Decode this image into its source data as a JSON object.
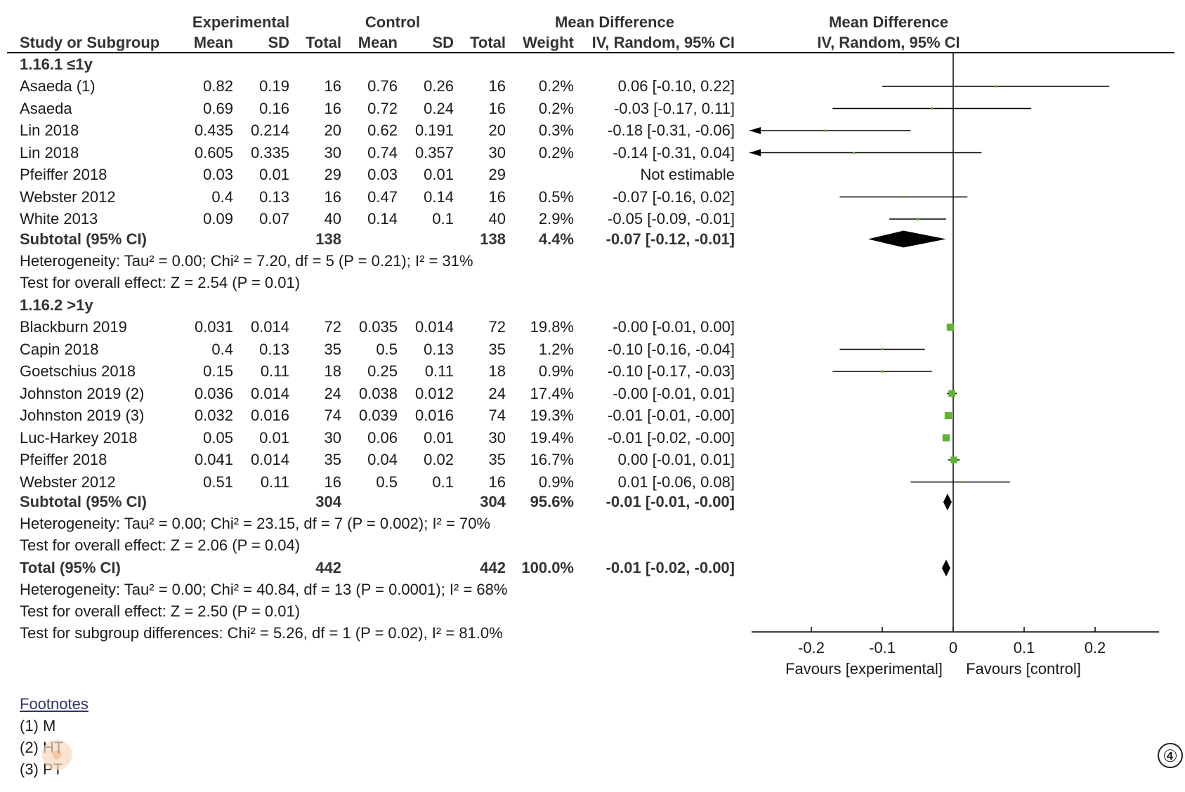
{
  "header": {
    "group1": "Experimental",
    "group2": "Control",
    "md_title": "Mean Difference",
    "plot_title": "Mean Difference",
    "study_col": "Study or Subgroup",
    "mean1": "Mean",
    "sd1": "SD",
    "total1": "Total",
    "mean2": "Mean",
    "sd2": "SD",
    "total2": "Total",
    "weight": "Weight",
    "md_method": "IV, Random, 95% CI",
    "plot_method": "IV, Random, 95% CI"
  },
  "subgroups": [
    {
      "label": "1.16.1 ≤1y",
      "studies": [
        {
          "name": "Asaeda (1)",
          "m1": "0.82",
          "sd1": "0.19",
          "n1": "16",
          "m2": "0.76",
          "sd2": "0.26",
          "n2": "16",
          "w": "0.2%",
          "ci": "0.06 [-0.10, 0.22]",
          "md": 0.06,
          "lo": -0.1,
          "hi": 0.22,
          "weight": 0.2
        },
        {
          "name": "Asaeda",
          "m1": "0.69",
          "sd1": "0.16",
          "n1": "16",
          "m2": "0.72",
          "sd2": "0.24",
          "n2": "16",
          "w": "0.2%",
          "ci": "-0.03 [-0.17, 0.11]",
          "md": -0.03,
          "lo": -0.17,
          "hi": 0.11,
          "weight": 0.2
        },
        {
          "name": "Lin 2018",
          "m1": "0.435",
          "sd1": "0.214",
          "n1": "20",
          "m2": "0.62",
          "sd2": "0.191",
          "n2": "20",
          "w": "0.3%",
          "ci": "-0.18 [-0.31, -0.06]",
          "md": -0.18,
          "lo": -0.31,
          "hi": -0.06,
          "weight": 0.3
        },
        {
          "name": "Lin 2018",
          "m1": "0.605",
          "sd1": "0.335",
          "n1": "30",
          "m2": "0.74",
          "sd2": "0.357",
          "n2": "30",
          "w": "0.2%",
          "ci": "-0.14 [-0.31, 0.04]",
          "md": -0.14,
          "lo": -0.31,
          "hi": 0.04,
          "weight": 0.2
        },
        {
          "name": "Pfeiffer 2018",
          "m1": "0.03",
          "sd1": "0.01",
          "n1": "29",
          "m2": "0.03",
          "sd2": "0.01",
          "n2": "29",
          "w": "",
          "ci": "Not estimable",
          "md": null,
          "lo": null,
          "hi": null,
          "weight": 0
        },
        {
          "name": "Webster 2012",
          "m1": "0.4",
          "sd1": "0.13",
          "n1": "16",
          "m2": "0.47",
          "sd2": "0.14",
          "n2": "16",
          "w": "0.5%",
          "ci": "-0.07 [-0.16, 0.02]",
          "md": -0.07,
          "lo": -0.16,
          "hi": 0.02,
          "weight": 0.5
        },
        {
          "name": "White 2013",
          "m1": "0.09",
          "sd1": "0.07",
          "n1": "40",
          "m2": "0.14",
          "sd2": "0.1",
          "n2": "40",
          "w": "2.9%",
          "ci": "-0.05 [-0.09, -0.01]",
          "md": -0.05,
          "lo": -0.09,
          "hi": -0.01,
          "weight": 2.9
        }
      ],
      "subtotal": {
        "label": "Subtotal (95% CI)",
        "n1": "138",
        "n2": "138",
        "w": "4.4%",
        "ci": "-0.07 [-0.12, -0.01]",
        "md": -0.07,
        "lo": -0.12,
        "hi": -0.01
      },
      "heterogeneity": "Heterogeneity: Tau² = 0.00; Chi² = 7.20, df = 5 (P = 0.21); I² = 31%",
      "overall": "Test for overall effect: Z = 2.54 (P = 0.01)"
    },
    {
      "label": "1.16.2 >1y",
      "studies": [
        {
          "name": "Blackburn 2019",
          "m1": "0.031",
          "sd1": "0.014",
          "n1": "72",
          "m2": "0.035",
          "sd2": "0.014",
          "n2": "72",
          "w": "19.8%",
          "ci": "-0.00 [-0.01, 0.00]",
          "md": -0.004,
          "lo": -0.009,
          "hi": 0.001,
          "weight": 19.8
        },
        {
          "name": "Capin 2018",
          "m1": "0.4",
          "sd1": "0.13",
          "n1": "35",
          "m2": "0.5",
          "sd2": "0.13",
          "n2": "35",
          "w": "1.2%",
          "ci": "-0.10 [-0.16, -0.04]",
          "md": -0.1,
          "lo": -0.16,
          "hi": -0.04,
          "weight": 1.2
        },
        {
          "name": "Goetschius 2018",
          "m1": "0.15",
          "sd1": "0.11",
          "n1": "18",
          "m2": "0.25",
          "sd2": "0.11",
          "n2": "18",
          "w": "0.9%",
          "ci": "-0.10 [-0.17, -0.03]",
          "md": -0.1,
          "lo": -0.17,
          "hi": -0.03,
          "weight": 0.9
        },
        {
          "name": "Johnston 2019 (2)",
          "m1": "0.036",
          "sd1": "0.014",
          "n1": "24",
          "m2": "0.038",
          "sd2": "0.012",
          "n2": "24",
          "w": "17.4%",
          "ci": "-0.00 [-0.01, 0.01]",
          "md": -0.002,
          "lo": -0.009,
          "hi": 0.005,
          "weight": 17.4
        },
        {
          "name": "Johnston 2019 (3)",
          "m1": "0.032",
          "sd1": "0.016",
          "n1": "74",
          "m2": "0.039",
          "sd2": "0.016",
          "n2": "74",
          "w": "19.3%",
          "ci": "-0.01 [-0.01, -0.00]",
          "md": -0.007,
          "lo": -0.012,
          "hi": -0.002,
          "weight": 19.3
        },
        {
          "name": "Luc-Harkey 2018",
          "m1": "0.05",
          "sd1": "0.01",
          "n1": "30",
          "m2": "0.06",
          "sd2": "0.01",
          "n2": "30",
          "w": "19.4%",
          "ci": "-0.01 [-0.02, -0.00]",
          "md": -0.01,
          "lo": -0.015,
          "hi": -0.005,
          "weight": 19.4
        },
        {
          "name": "Pfeiffer 2018",
          "m1": "0.041",
          "sd1": "0.014",
          "n1": "35",
          "m2": "0.04",
          "sd2": "0.02",
          "n2": "35",
          "w": "16.7%",
          "ci": "0.00 [-0.01, 0.01]",
          "md": 0.001,
          "lo": -0.007,
          "hi": 0.009,
          "weight": 16.7
        },
        {
          "name": "Webster 2012",
          "m1": "0.51",
          "sd1": "0.11",
          "n1": "16",
          "m2": "0.5",
          "sd2": "0.1",
          "n2": "16",
          "w": "0.9%",
          "ci": "0.01 [-0.06, 0.08]",
          "md": 0.01,
          "lo": -0.06,
          "hi": 0.08,
          "weight": 0.9
        }
      ],
      "subtotal": {
        "label": "Subtotal (95% CI)",
        "n1": "304",
        "n2": "304",
        "w": "95.6%",
        "ci": "-0.01 [-0.01, -0.00]",
        "md": -0.008,
        "lo": -0.012,
        "hi": -0.004
      },
      "heterogeneity": "Heterogeneity: Tau² = 0.00; Chi² = 23.15, df = 7 (P = 0.002); I² = 70%",
      "overall": "Test for overall effect: Z = 2.06 (P = 0.04)"
    }
  ],
  "total": {
    "label": "Total (95% CI)",
    "n1": "442",
    "n2": "442",
    "w": "100.0%",
    "ci": "-0.01 [-0.02, -0.00]",
    "md": -0.01,
    "lo": -0.015,
    "hi": -0.005
  },
  "total_heterogeneity": "Heterogeneity: Tau² = 0.00; Chi² = 40.84, df = 13 (P = 0.0001); I² = 68%",
  "total_overall": "Test for overall effect: Z = 2.50 (P = 0.01)",
  "subgroup_diff": "Test for subgroup differences: Chi² = 5.26, df = 1 (P = 0.02), I² = 81.0%",
  "footnotes": {
    "title": "Footnotes",
    "items": [
      "(1) M",
      "(2) HT",
      "(3) PT"
    ]
  },
  "axis": {
    "ticks": [
      "-0.2",
      "-0.1",
      "0",
      "0.1",
      "0.2"
    ],
    "left_label": "Favours [experimental]",
    "right_label": "Favours [control]"
  },
  "figure_number": "④",
  "colors": {
    "square": "#5cb531",
    "line": "#000000",
    "diamond": "#000000"
  },
  "chart_data": {
    "type": "forest",
    "xlim": [
      -0.2,
      0.2
    ],
    "xticks": [
      -0.2,
      -0.1,
      0,
      0.1,
      0.2
    ],
    "xlabel_left": "Favours [experimental]",
    "xlabel_right": "Favours [control]",
    "note": ""
  }
}
